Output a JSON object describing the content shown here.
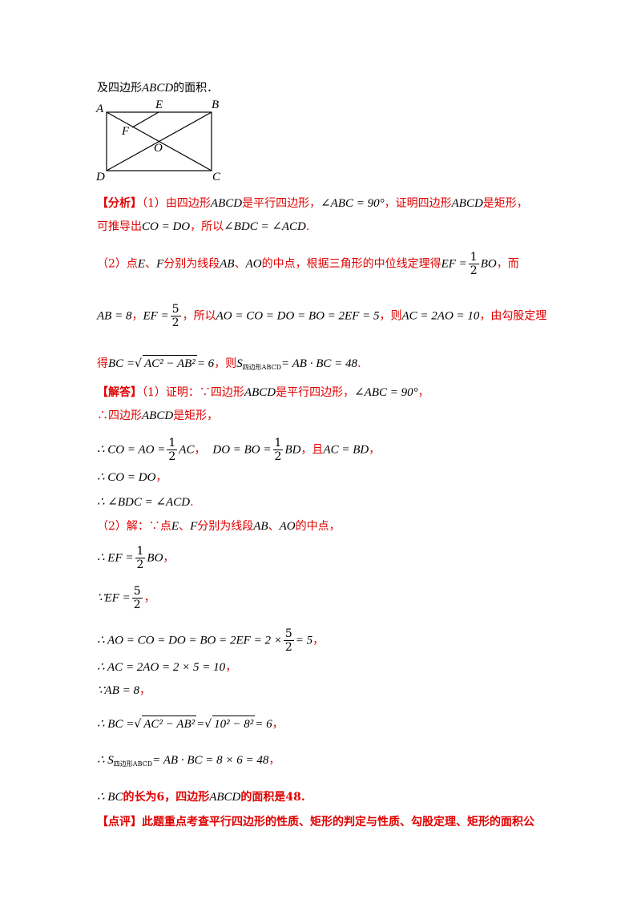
{
  "intro": {
    "prefix": "及四边形",
    "abcd": "ABCD",
    "suffix": "的面积．"
  },
  "figure": {
    "labels": {
      "A": "A",
      "E": "E",
      "B": "B",
      "F": "F",
      "O": "O",
      "D": "D",
      "C": "C"
    }
  },
  "analysis": {
    "tag": "【分析】",
    "l1_a": "（1）由四边形",
    "l1_b": "ABCD",
    "l1_c": "是平行四边形，",
    "l1_d": "∠ABC = 90°",
    "l1_e": "，证明四边形",
    "l1_f": "ABCD",
    "l1_g": "是矩形，",
    "l2_a": "可推导出",
    "l2_b": "CO = DO",
    "l2_c": "，所以",
    "l2_d": "∠BDC = ∠ACD",
    "l2_e": ".",
    "l3_a": "（2）点",
    "l3_b": "E",
    "l3_c": "、",
    "l3_d": "F",
    "l3_e": "分别为线段",
    "l3_f": "AB",
    "l3_g": "、",
    "l3_h": "AO",
    "l3_i": "的中点，根据三角形的中位线定理得",
    "l3_j": "EF =",
    "l3_k_num": "1",
    "l3_k_den": "2",
    "l3_l": "BO",
    "l3_m": "，而",
    "l4_a": "AB = 8",
    "l4_b": "，",
    "l4_c": "EF =",
    "l4_d_num": "5",
    "l4_d_den": "2",
    "l4_e": "，所以",
    "l4_f": "AO = CO = DO = BO = 2EF = 5",
    "l4_g": "，则",
    "l4_h": "AC = 2AO = 10",
    "l4_i": "，由勾股定理",
    "l5_a": "得",
    "l5_b": "BC =",
    "l5_c": "AC² − AB²",
    "l5_d": "= 6",
    "l5_e": "，则",
    "l5_f": "S",
    "l5_g": "四边形ABCD",
    "l5_h": "= AB · BC = 48",
    "l5_i": "."
  },
  "solution": {
    "tag": "【解答】",
    "s1_a": "（1）证明：∵四边形",
    "s1_b": "ABCD",
    "s1_c": "是平行四边形，",
    "s1_d": "∠ABC = 90°",
    "s1_e": "，",
    "s2_a": "∴四边形",
    "s2_b": "ABCD",
    "s2_c": "是矩形，",
    "s3_a": "∴ CO = AO =",
    "s3_b_num": "1",
    "s3_b_den": "2",
    "s3_c": "AC",
    "s3_d": "，",
    "s3_e": "DO = BO =",
    "s3_f_num": "1",
    "s3_f_den": "2",
    "s3_g": "BD",
    "s3_h": "，且",
    "s3_i": "AC = BD",
    "s3_j": "，",
    "s4_a": "∴ CO = DO",
    "s4_b": "，",
    "s5_a": "∴ ∠BDC = ∠ACD",
    "s5_b": ".",
    "s6_a": "（2）解：∵点",
    "s6_b": "E",
    "s6_c": "、",
    "s6_d": "F",
    "s6_e": "分别为线段",
    "s6_f": "AB",
    "s6_g": "、",
    "s6_h": "AO",
    "s6_i": "的中点，",
    "s7_a": "∴ EF =",
    "s7_num": "1",
    "s7_den": "2",
    "s7_b": "BO",
    "s7_c": "，",
    "s8_a": "∵EF =",
    "s8_num": "5",
    "s8_den": "2",
    "s8_b": "，",
    "s9_a": "∴ AO = CO = DO = BO = 2EF = 2 ×",
    "s9_num": "5",
    "s9_den": "2",
    "s9_b": "= 5",
    "s9_c": "，",
    "s10_a": "∴ AC = 2AO = 2 × 5 = 10",
    "s10_b": "，",
    "s11_a": "∵AB = 8",
    "s11_b": "，",
    "s12_a": "∴ BC =",
    "s12_b": "AC² − AB²",
    "s12_c": "=",
    "s12_d": "10² − 8²",
    "s12_e": "= 6",
    "s12_f": "，",
    "s13_a": "∴ S",
    "s13_b": "四边形ABCD",
    "s13_c": "= AB · BC = 8 × 6 = 48",
    "s13_d": "，",
    "s14_a": "∴ BC",
    "s14_b": "的长为6，四边形",
    "s14_c": "ABCD",
    "s14_d": "的面积是48."
  },
  "comment": {
    "tag": "【点评】",
    "text": "此题重点考查平行四边形的性质、矩形的判定与性质、勾股定理、矩形的面积公"
  }
}
